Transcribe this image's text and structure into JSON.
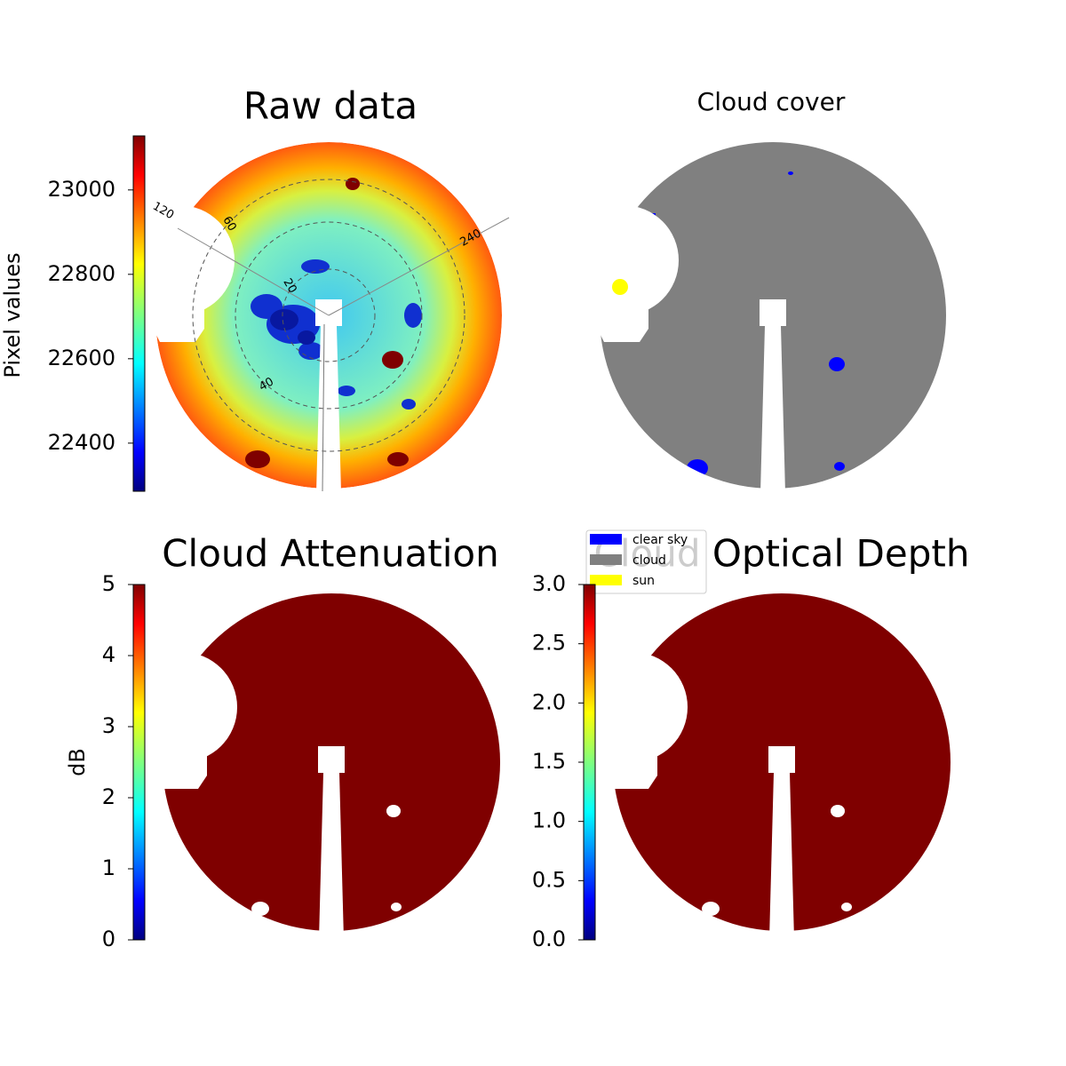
{
  "chart_data": [
    {
      "type": "image",
      "title": "Raw data",
      "polar_labels": [
        "120",
        "240",
        "20",
        "40",
        "60"
      ],
      "colorbar": {
        "label": "Pixel values",
        "lim": [
          22286,
          23128
        ],
        "ticks": [
          22400,
          22600,
          22800,
          23000
        ]
      }
    },
    {
      "type": "image",
      "title": "Cloud cover",
      "legend": [
        {
          "name": "clear sky",
          "color": "#0000ff"
        },
        {
          "name": "cloud",
          "color": "#808080"
        },
        {
          "name": "sun",
          "color": "#ffff00"
        }
      ]
    },
    {
      "type": "image",
      "title": "Cloud Attenuation",
      "colorbar": {
        "label": "dB",
        "lim": [
          0,
          5
        ],
        "ticks": [
          0,
          1,
          2,
          3,
          4,
          5
        ]
      }
    },
    {
      "type": "image",
      "title": "Cloud Optical Depth",
      "colorbar": {
        "lim": [
          0,
          3
        ],
        "ticks": [
          {
            "value": 0,
            "label": "0.0"
          },
          0.5,
          {
            "value": 1,
            "label": "1.0"
          },
          1.5,
          {
            "value": 2,
            "label": "2.0"
          },
          2.5,
          {
            "value": 3,
            "label": "3.0"
          }
        ]
      }
    }
  ]
}
